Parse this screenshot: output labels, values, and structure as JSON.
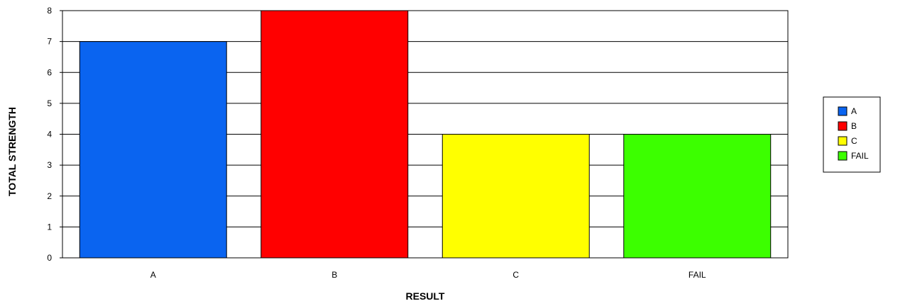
{
  "chart_data": {
    "type": "bar",
    "categories": [
      "A",
      "B",
      "C",
      "FAIL"
    ],
    "values": [
      7,
      8,
      4,
      4
    ],
    "colors": [
      "#0a64f0",
      "#ff0000",
      "#ffff00",
      "#3cff00"
    ],
    "xlabel": "RESULT",
    "ylabel": "TOTAL STRENGTH",
    "ylim": [
      0,
      8
    ],
    "yticks": [
      "0",
      "1",
      "2",
      "3",
      "4",
      "5",
      "6",
      "7",
      "8"
    ],
    "grid": true,
    "legend": {
      "position": "right",
      "entries": [
        "A",
        "B",
        "C",
        "FAIL"
      ]
    }
  }
}
